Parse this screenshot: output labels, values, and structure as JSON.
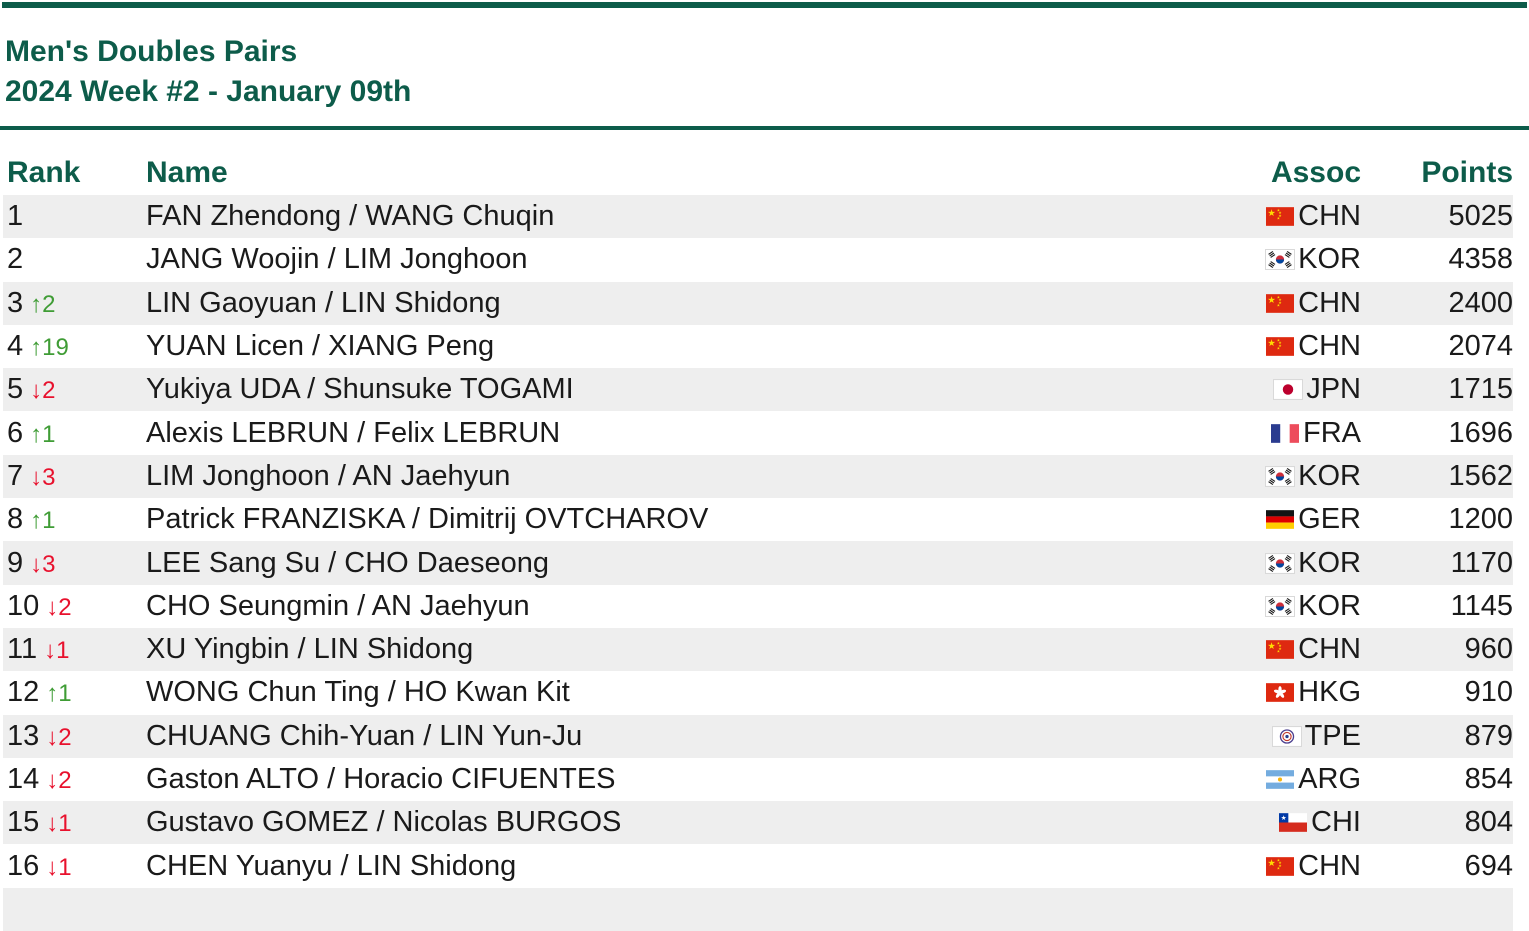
{
  "page": {
    "title": "Men's Doubles Pairs",
    "subtitle": "2024 Week #2 - January 09th"
  },
  "table": {
    "headers": {
      "rank": "Rank",
      "name": "Name",
      "assoc": "Assoc",
      "points": "Points"
    },
    "rows": [
      {
        "rank": "1",
        "change": null,
        "name": "FAN Zhendong / WANG Chuqin",
        "assoc": "CHN",
        "points": "5025"
      },
      {
        "rank": "2",
        "change": null,
        "name": "JANG Woojin / LIM Jonghoon",
        "assoc": "KOR",
        "points": "4358"
      },
      {
        "rank": "3",
        "change": {
          "dir": "up",
          "delta": "2"
        },
        "name": "LIN Gaoyuan / LIN Shidong",
        "assoc": "CHN",
        "points": "2400"
      },
      {
        "rank": "4",
        "change": {
          "dir": "up",
          "delta": "19"
        },
        "name": "YUAN Licen / XIANG Peng",
        "assoc": "CHN",
        "points": "2074"
      },
      {
        "rank": "5",
        "change": {
          "dir": "down",
          "delta": "2"
        },
        "name": "Yukiya UDA / Shunsuke TOGAMI",
        "assoc": "JPN",
        "points": "1715"
      },
      {
        "rank": "6",
        "change": {
          "dir": "up",
          "delta": "1"
        },
        "name": "Alexis LEBRUN / Felix LEBRUN",
        "assoc": "FRA",
        "points": "1696"
      },
      {
        "rank": "7",
        "change": {
          "dir": "down",
          "delta": "3"
        },
        "name": "LIM Jonghoon / AN Jaehyun",
        "assoc": "KOR",
        "points": "1562"
      },
      {
        "rank": "8",
        "change": {
          "dir": "up",
          "delta": "1"
        },
        "name": "Patrick FRANZISKA / Dimitrij OVTCHAROV",
        "assoc": "GER",
        "points": "1200"
      },
      {
        "rank": "9",
        "change": {
          "dir": "down",
          "delta": "3"
        },
        "name": "LEE Sang Su / CHO Daeseong",
        "assoc": "KOR",
        "points": "1170"
      },
      {
        "rank": "10",
        "change": {
          "dir": "down",
          "delta": "2"
        },
        "name": "CHO Seungmin / AN Jaehyun",
        "assoc": "KOR",
        "points": "1145"
      },
      {
        "rank": "11",
        "change": {
          "dir": "down",
          "delta": "1"
        },
        "name": "XU Yingbin / LIN Shidong",
        "assoc": "CHN",
        "points": "960"
      },
      {
        "rank": "12",
        "change": {
          "dir": "up",
          "delta": "1"
        },
        "name": "WONG Chun Ting / HO Kwan Kit",
        "assoc": "HKG",
        "points": "910"
      },
      {
        "rank": "13",
        "change": {
          "dir": "down",
          "delta": "2"
        },
        "name": "CHUANG Chih-Yuan / LIN Yun-Ju",
        "assoc": "TPE",
        "points": "879"
      },
      {
        "rank": "14",
        "change": {
          "dir": "down",
          "delta": "2"
        },
        "name": "Gaston ALTO / Horacio CIFUENTES",
        "assoc": "ARG",
        "points": "854"
      },
      {
        "rank": "15",
        "change": {
          "dir": "down",
          "delta": "1"
        },
        "name": "Gustavo GOMEZ / Nicolas BURGOS",
        "assoc": "CHI",
        "points": "804"
      },
      {
        "rank": "16",
        "change": {
          "dir": "down",
          "delta": "1"
        },
        "name": "CHEN Yuanyu / LIN Shidong",
        "assoc": "CHN",
        "points": "694"
      }
    ]
  },
  "icons": {
    "up_arrow": "↑",
    "down_arrow": "↓",
    "flags": {
      "CHN": "flag-chn-icon",
      "KOR": "flag-kor-icon",
      "JPN": "flag-jpn-icon",
      "FRA": "flag-fra-icon",
      "GER": "flag-ger-icon",
      "HKG": "flag-hkg-icon",
      "TPE": "flag-tpe-icon",
      "ARG": "flag-arg-icon",
      "CHI": "flag-chi-icon"
    }
  },
  "colors": {
    "accent_green": "#0d5c4a",
    "rank_up": "#3f9c35",
    "rank_down": "#e8112d",
    "row_stripe": "#eeeeee",
    "text": "#1a1a1a"
  }
}
